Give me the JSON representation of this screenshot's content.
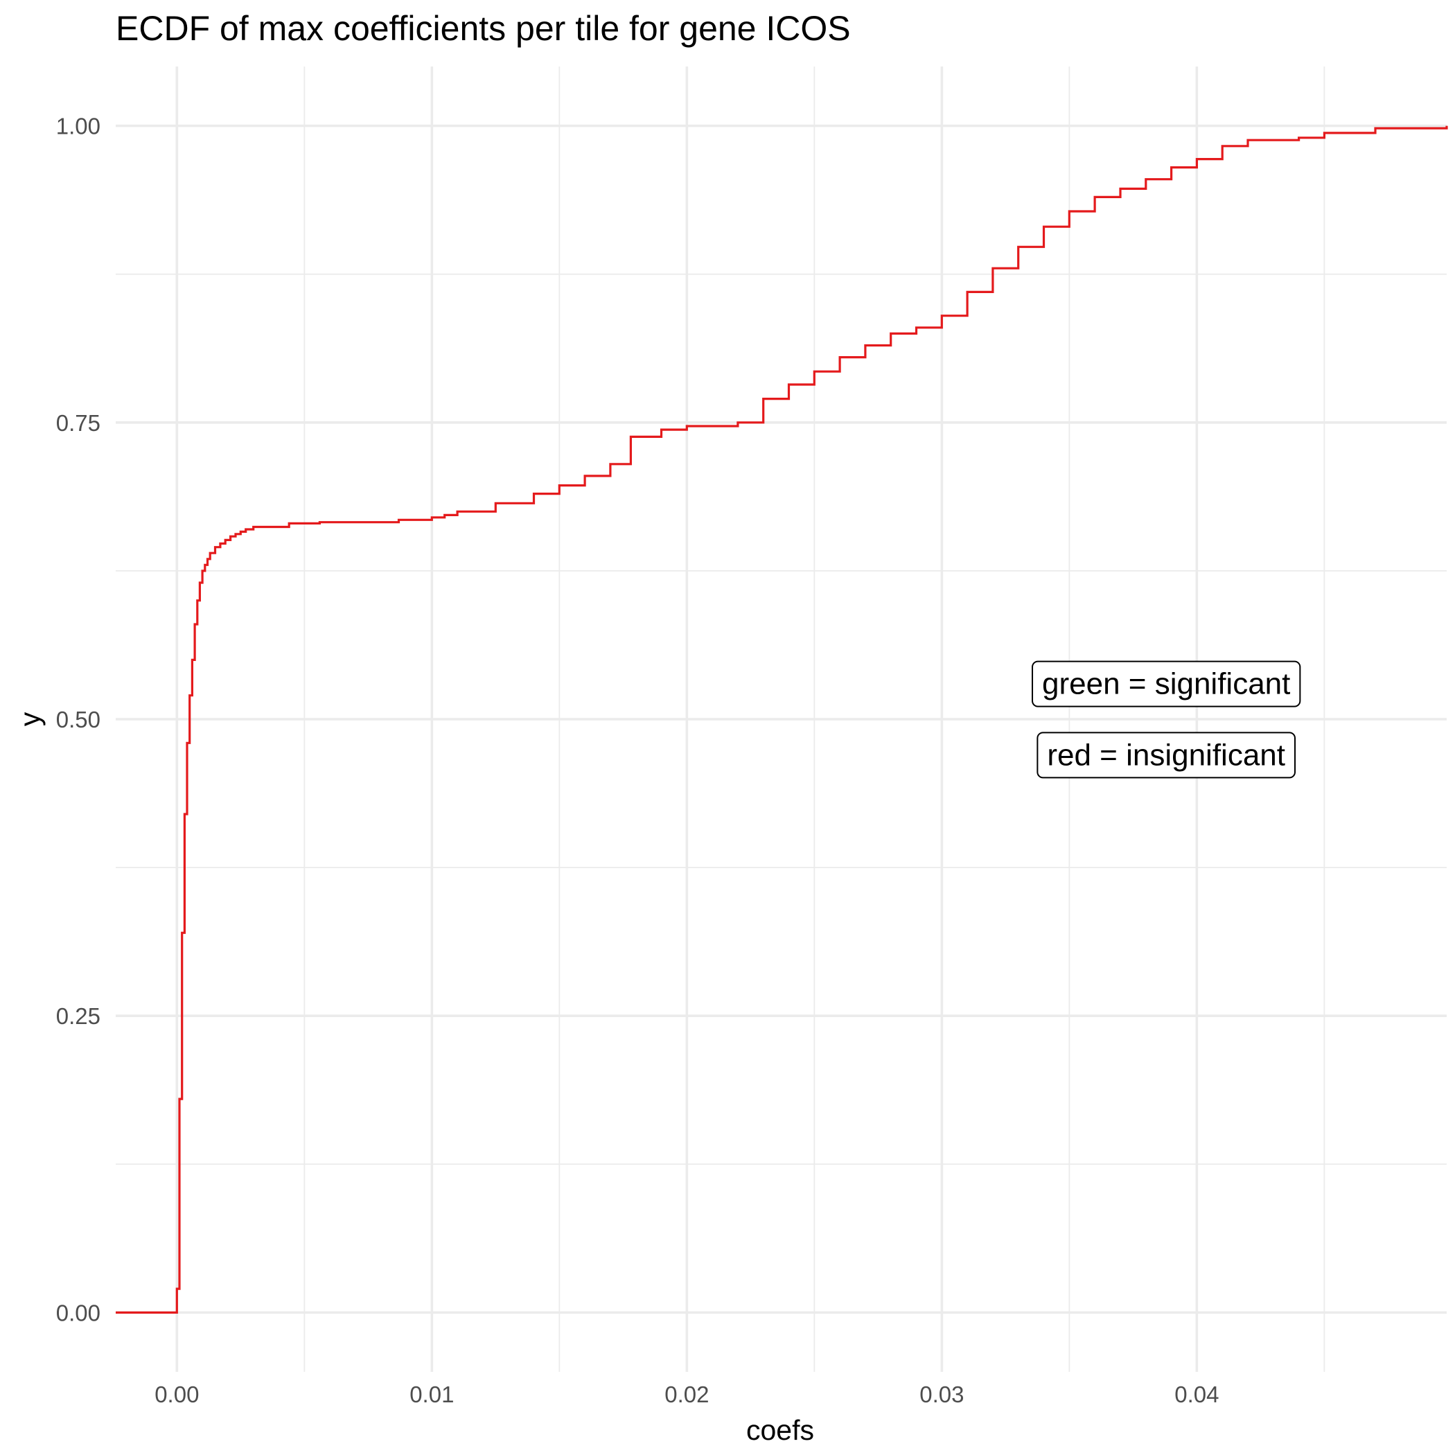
{
  "chart_data": {
    "type": "line",
    "title": "ECDF of max coefficients per tile for gene ICOS",
    "xlabel": "coefs",
    "ylabel": "y",
    "xlim": [
      -0.0024,
      0.0498
    ],
    "ylim": [
      -0.05,
      1.05
    ],
    "x_ticks": [
      {
        "value": 0.0,
        "label": "0.00"
      },
      {
        "value": 0.01,
        "label": "0.01"
      },
      {
        "value": 0.02,
        "label": "0.02"
      },
      {
        "value": 0.03,
        "label": "0.03"
      },
      {
        "value": 0.04,
        "label": "0.04"
      }
    ],
    "y_ticks": [
      {
        "value": 0.0,
        "label": "0.00"
      },
      {
        "value": 0.25,
        "label": "0.25"
      },
      {
        "value": 0.5,
        "label": "0.50"
      },
      {
        "value": 0.75,
        "label": "0.75"
      },
      {
        "value": 1.0,
        "label": "1.00"
      }
    ],
    "grid": true,
    "series": [
      {
        "color": "#e41a1c",
        "step": true,
        "x": [
          -0.0024,
          0.0,
          0.0001,
          0.0002,
          0.0003,
          0.0004,
          0.0005,
          0.0006,
          0.0007,
          0.0008,
          0.0009,
          0.001,
          0.0011,
          0.0012,
          0.0013,
          0.0015,
          0.0017,
          0.0019,
          0.0021,
          0.0023,
          0.0025,
          0.0027,
          0.003,
          0.0033,
          0.0037,
          0.0044,
          0.0056,
          0.007,
          0.0087,
          0.01,
          0.0105,
          0.011,
          0.0125,
          0.014,
          0.015,
          0.016,
          0.017,
          0.0178,
          0.019,
          0.02,
          0.022,
          0.023,
          0.024,
          0.025,
          0.026,
          0.027,
          0.028,
          0.029,
          0.03,
          0.031,
          0.032,
          0.033,
          0.034,
          0.035,
          0.036,
          0.037,
          0.038,
          0.039,
          0.04,
          0.041,
          0.042,
          0.044,
          0.045,
          0.047,
          0.0498
        ],
        "y": [
          0.0,
          0.02,
          0.18,
          0.32,
          0.42,
          0.48,
          0.52,
          0.55,
          0.58,
          0.6,
          0.615,
          0.625,
          0.63,
          0.635,
          0.64,
          0.645,
          0.648,
          0.651,
          0.654,
          0.656,
          0.658,
          0.66,
          0.662,
          0.662,
          0.662,
          0.665,
          0.666,
          0.666,
          0.668,
          0.67,
          0.672,
          0.675,
          0.682,
          0.69,
          0.697,
          0.705,
          0.715,
          0.738,
          0.744,
          0.747,
          0.75,
          0.77,
          0.782,
          0.793,
          0.805,
          0.815,
          0.825,
          0.83,
          0.84,
          0.86,
          0.88,
          0.898,
          0.915,
          0.928,
          0.94,
          0.947,
          0.955,
          0.965,
          0.972,
          0.983,
          0.988,
          0.99,
          0.994,
          0.998,
          1.0
        ]
      }
    ],
    "annotations": [
      {
        "text": "green = significant",
        "x": 0.0388,
        "y": 0.53
      },
      {
        "text": "red = insignificant",
        "x": 0.0388,
        "y": 0.47
      }
    ]
  }
}
